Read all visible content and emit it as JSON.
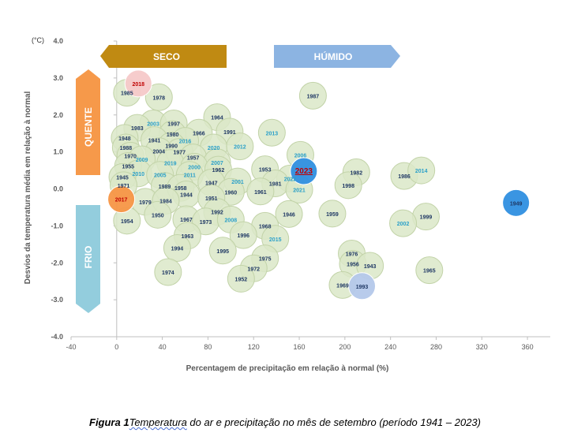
{
  "chart_data": {
    "type": "scatter",
    "title": "",
    "xlabel": "Percentagem de precipitação em relação à normal (%)",
    "ylabel": "Desvios da temperatura média em relação à normal",
    "yunit": "(°C)",
    "xlim": [
      -40,
      380
    ],
    "ylim": [
      -4,
      4
    ],
    "xticks": [
      "-40",
      "0",
      "40",
      "80",
      "120",
      "160",
      "200",
      "240",
      "280",
      "320",
      "360"
    ],
    "yticks": [
      "4.0",
      "3.0",
      "2.0",
      "1.0",
      "0.0",
      "-1.0",
      "-2.0",
      "-3.0",
      "-4.0"
    ],
    "grid": false,
    "legend": "none",
    "regions": {
      "dry": "SECO",
      "wet": "HÚMIDO",
      "hot": "QUENTE",
      "cold": "FRIO"
    },
    "colors": {
      "bubble": "#dbe7c8",
      "bubble_edge": "#c2d3a8",
      "seco_arrow": "#c08a12",
      "humido_arrow": "#8cb4e2",
      "quente_arrow": "#f6994a",
      "frio_arrow": "#93cddd",
      "year_text": "#1f3864",
      "recent_text": "#2ba0c9",
      "highlight_text": "#c00000",
      "point_2018": "#f6c9c9",
      "point_2017": "#f79646",
      "point_1949": "#2f8fe0",
      "point_2023": "#2f8fe0",
      "point_1993": "#b4c8ea"
    },
    "points": [
      {
        "label": "2018",
        "x": 19,
        "y": 2.85,
        "style": "h2018"
      },
      {
        "label": "1985",
        "x": 9,
        "y": 2.6
      },
      {
        "label": "1978",
        "x": 37,
        "y": 2.48
      },
      {
        "label": "1987",
        "x": 172,
        "y": 2.52
      },
      {
        "label": "1964",
        "x": 88,
        "y": 1.94
      },
      {
        "label": "2003",
        "x": 32,
        "y": 1.77,
        "style": "recent"
      },
      {
        "label": "1997",
        "x": 50,
        "y": 1.77
      },
      {
        "label": "1983",
        "x": 18,
        "y": 1.65
      },
      {
        "label": "1991",
        "x": 99,
        "y": 1.55
      },
      {
        "label": "1966",
        "x": 72,
        "y": 1.52
      },
      {
        "label": "2013",
        "x": 136,
        "y": 1.52,
        "style": "recent"
      },
      {
        "label": "1980",
        "x": 49,
        "y": 1.48
      },
      {
        "label": "1948",
        "x": 7,
        "y": 1.38
      },
      {
        "label": "1941",
        "x": 33,
        "y": 1.32
      },
      {
        "label": "2016",
        "x": 60,
        "y": 1.3,
        "style": "recent"
      },
      {
        "label": "1990",
        "x": 48,
        "y": 1.17
      },
      {
        "label": "2020",
        "x": 85,
        "y": 1.12,
        "style": "recent"
      },
      {
        "label": "2012",
        "x": 108,
        "y": 1.15,
        "style": "recent"
      },
      {
        "label": "1988",
        "x": 8,
        "y": 1.12
      },
      {
        "label": "2004",
        "x": 37,
        "y": 1.02
      },
      {
        "label": "1977",
        "x": 55,
        "y": 1.0
      },
      {
        "label": "1970",
        "x": 12,
        "y": 0.9
      },
      {
        "label": "1957",
        "x": 67,
        "y": 0.85
      },
      {
        "label": "2006",
        "x": 161,
        "y": 0.92,
        "style": "recent"
      },
      {
        "label": "2009",
        "x": 22,
        "y": 0.8,
        "style": "recent"
      },
      {
        "label": "2019",
        "x": 47,
        "y": 0.7,
        "style": "recent"
      },
      {
        "label": "2007",
        "x": 88,
        "y": 0.72,
        "style": "recent"
      },
      {
        "label": "1955",
        "x": 10,
        "y": 0.62
      },
      {
        "label": "2000",
        "x": 68,
        "y": 0.6,
        "style": "recent"
      },
      {
        "label": "1962",
        "x": 89,
        "y": 0.52
      },
      {
        "label": "1953",
        "x": 130,
        "y": 0.53
      },
      {
        "label": "2023",
        "x": 164,
        "y": 0.48,
        "style": "h2023"
      },
      {
        "label": "1982",
        "x": 210,
        "y": 0.45
      },
      {
        "label": "1986",
        "x": 252,
        "y": 0.35
      },
      {
        "label": "2014",
        "x": 267,
        "y": 0.5,
        "style": "recent"
      },
      {
        "label": "2010",
        "x": 19,
        "y": 0.42,
        "style": "recent"
      },
      {
        "label": "2005",
        "x": 38,
        "y": 0.38,
        "style": "recent"
      },
      {
        "label": "2011",
        "x": 64,
        "y": 0.38,
        "style": "recent"
      },
      {
        "label": "2022",
        "x": 152,
        "y": 0.28,
        "style": "recent"
      },
      {
        "label": "1945",
        "x": 5,
        "y": 0.32
      },
      {
        "label": "1947",
        "x": 83,
        "y": 0.17
      },
      {
        "label": "2001",
        "x": 106,
        "y": 0.2,
        "style": "recent"
      },
      {
        "label": "1981",
        "x": 139,
        "y": 0.15
      },
      {
        "label": "1998",
        "x": 203,
        "y": 0.1
      },
      {
        "label": "1971",
        "x": 6,
        "y": 0.1
      },
      {
        "label": "1989",
        "x": 42,
        "y": 0.08
      },
      {
        "label": "1958",
        "x": 56,
        "y": 0.03
      },
      {
        "label": "2021",
        "x": 160,
        "y": -0.02,
        "style": "recent"
      },
      {
        "label": "1961",
        "x": 126,
        "y": -0.07
      },
      {
        "label": "1960",
        "x": 100,
        "y": -0.08
      },
      {
        "label": "1944",
        "x": 61,
        "y": -0.15
      },
      {
        "label": "1951",
        "x": 83,
        "y": -0.25
      },
      {
        "label": "2017",
        "x": 4,
        "y": -0.28,
        "style": "h2017"
      },
      {
        "label": "1979",
        "x": 25,
        "y": -0.35
      },
      {
        "label": "1984",
        "x": 43,
        "y": -0.32
      },
      {
        "label": "1949",
        "x": 350,
        "y": -0.38,
        "style": "h1949"
      },
      {
        "label": "1992",
        "x": 88,
        "y": -0.62
      },
      {
        "label": "1950",
        "x": 36,
        "y": -0.7
      },
      {
        "label": "1946",
        "x": 151,
        "y": -0.68
      },
      {
        "label": "1959",
        "x": 189,
        "y": -0.67
      },
      {
        "label": "1999",
        "x": 271,
        "y": -0.75
      },
      {
        "label": "1967",
        "x": 61,
        "y": -0.82
      },
      {
        "label": "1973",
        "x": 78,
        "y": -0.88
      },
      {
        "label": "2008",
        "x": 100,
        "y": -0.83,
        "style": "recent"
      },
      {
        "label": "1954",
        "x": 9,
        "y": -0.86
      },
      {
        "label": "2002",
        "x": 251,
        "y": -0.93,
        "style": "recent"
      },
      {
        "label": "1968",
        "x": 130,
        "y": -1.0
      },
      {
        "label": "1963",
        "x": 62,
        "y": -1.27
      },
      {
        "label": "1996",
        "x": 111,
        "y": -1.25
      },
      {
        "label": "2015",
        "x": 139,
        "y": -1.35,
        "style": "recent"
      },
      {
        "label": "1994",
        "x": 53,
        "y": -1.6
      },
      {
        "label": "1995",
        "x": 93,
        "y": -1.67
      },
      {
        "label": "1976",
        "x": 206,
        "y": -1.75
      },
      {
        "label": "1975",
        "x": 130,
        "y": -1.88
      },
      {
        "label": "1956",
        "x": 207,
        "y": -2.03
      },
      {
        "label": "1943",
        "x": 222,
        "y": -2.08
      },
      {
        "label": "1972",
        "x": 120,
        "y": -2.15
      },
      {
        "label": "1965",
        "x": 274,
        "y": -2.2
      },
      {
        "label": "1974",
        "x": 45,
        "y": -2.25
      },
      {
        "label": "1952",
        "x": 109,
        "y": -2.43
      },
      {
        "label": "1969",
        "x": 198,
        "y": -2.6
      },
      {
        "label": "1993",
        "x": 215,
        "y": -2.63,
        "style": "h1993"
      }
    ]
  },
  "caption": {
    "label": "Figura 1",
    "word": "Temperatura",
    "rest": " do ar e precipitação no mês de setembro (período 1941 – 2023)"
  }
}
